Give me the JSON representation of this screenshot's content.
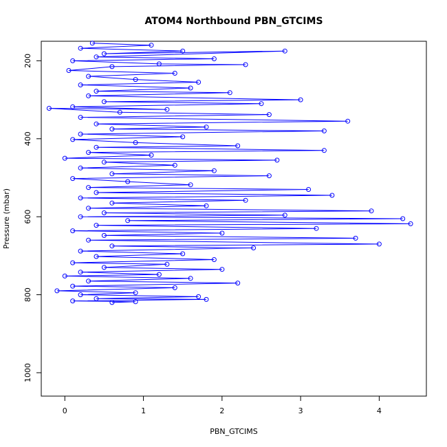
{
  "chart_data": {
    "type": "line",
    "title": "ATOM4 Northbound PBN_GTCIMS",
    "xlabel": "PBN_GTCIMS",
    "ylabel": "Pressure (mbar)",
    "xlim": [
      -0.3,
      4.6
    ],
    "ylim": [
      1060,
      150
    ],
    "y_reversed": true,
    "x_ticks": [
      0,
      1,
      2,
      3,
      4
    ],
    "x_tick_labels": [
      "0",
      "1",
      "2",
      "3",
      "4"
    ],
    "y_ticks": [
      200,
      400,
      600,
      800,
      1000
    ],
    "y_tick_labels": [
      "200",
      "400",
      "600",
      "800",
      "1000"
    ],
    "grid": false,
    "marker": "open-circle",
    "line_style": "solid",
    "colors": {
      "series": "#0000ff",
      "axis": "#000000"
    },
    "series": [
      {
        "values": [
          [
            0.35,
            155
          ],
          [
            1.1,
            160
          ],
          [
            0.2,
            168
          ],
          [
            1.5,
            175
          ],
          [
            0.5,
            182
          ],
          [
            2.8,
            175
          ],
          [
            0.4,
            190
          ],
          [
            1.9,
            195
          ],
          [
            0.1,
            200
          ],
          [
            1.2,
            208
          ],
          [
            2.3,
            210
          ],
          [
            0.6,
            215
          ],
          [
            0.05,
            225
          ],
          [
            1.4,
            232
          ],
          [
            0.3,
            240
          ],
          [
            0.9,
            248
          ],
          [
            1.7,
            255
          ],
          [
            0.2,
            262
          ],
          [
            1.6,
            270
          ],
          [
            0.4,
            278
          ],
          [
            2.1,
            282
          ],
          [
            0.3,
            290
          ],
          [
            3.0,
            300
          ],
          [
            0.5,
            305
          ],
          [
            2.5,
            310
          ],
          [
            0.1,
            318
          ],
          [
            1.3,
            325
          ],
          [
            -0.2,
            322
          ],
          [
            0.7,
            332
          ],
          [
            2.6,
            338
          ],
          [
            0.2,
            345
          ],
          [
            3.6,
            355
          ],
          [
            0.4,
            362
          ],
          [
            1.8,
            370
          ],
          [
            0.6,
            375
          ],
          [
            3.3,
            380
          ],
          [
            0.2,
            388
          ],
          [
            1.5,
            395
          ],
          [
            0.1,
            402
          ],
          [
            0.9,
            410
          ],
          [
            2.2,
            418
          ],
          [
            0.4,
            422
          ],
          [
            3.3,
            430
          ],
          [
            0.3,
            435
          ],
          [
            1.1,
            442
          ],
          [
            0.0,
            450
          ],
          [
            2.7,
            455
          ],
          [
            0.5,
            460
          ],
          [
            1.4,
            468
          ],
          [
            0.2,
            475
          ],
          [
            1.9,
            482
          ],
          [
            0.6,
            490
          ],
          [
            2.6,
            495
          ],
          [
            0.1,
            502
          ],
          [
            0.8,
            510
          ],
          [
            1.6,
            518
          ],
          [
            0.3,
            525
          ],
          [
            3.1,
            530
          ],
          [
            0.4,
            538
          ],
          [
            3.4,
            545
          ],
          [
            0.2,
            552
          ],
          [
            2.3,
            558
          ],
          [
            0.6,
            565
          ],
          [
            1.8,
            572
          ],
          [
            0.3,
            578
          ],
          [
            3.9,
            585
          ],
          [
            0.5,
            590
          ],
          [
            2.8,
            596
          ],
          [
            0.2,
            600
          ],
          [
            4.3,
            605
          ],
          [
            0.8,
            610
          ],
          [
            4.4,
            618
          ],
          [
            0.4,
            622
          ],
          [
            3.2,
            630
          ],
          [
            0.1,
            636
          ],
          [
            2.0,
            642
          ],
          [
            0.5,
            648
          ],
          [
            3.7,
            655
          ],
          [
            0.3,
            660
          ],
          [
            4.0,
            670
          ],
          [
            0.6,
            675
          ],
          [
            2.4,
            680
          ],
          [
            0.2,
            688
          ],
          [
            1.5,
            695
          ],
          [
            0.4,
            702
          ],
          [
            1.9,
            710
          ],
          [
            0.1,
            718
          ],
          [
            1.3,
            722
          ],
          [
            0.5,
            730
          ],
          [
            2.0,
            735
          ],
          [
            0.2,
            742
          ],
          [
            1.2,
            748
          ],
          [
            0.0,
            752
          ],
          [
            1.6,
            758
          ],
          [
            0.3,
            765
          ],
          [
            2.2,
            770
          ],
          [
            0.1,
            778
          ],
          [
            1.4,
            782
          ],
          [
            -0.1,
            790
          ],
          [
            0.9,
            795
          ],
          [
            0.2,
            800
          ],
          [
            1.7,
            805
          ],
          [
            0.4,
            810
          ],
          [
            1.8,
            812
          ],
          [
            0.1,
            816
          ],
          [
            0.9,
            818
          ],
          [
            0.6,
            820
          ]
        ]
      }
    ]
  }
}
